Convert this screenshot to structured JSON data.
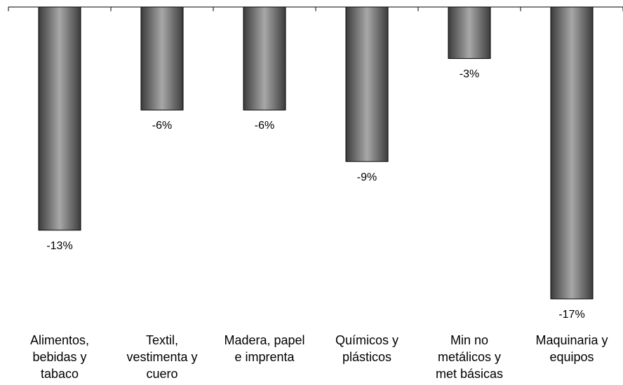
{
  "chart_data": {
    "type": "bar",
    "categories": [
      [
        "Alimentos,",
        "bebidas y",
        "tabaco"
      ],
      [
        "Textil,",
        "vestimenta y",
        "cuero"
      ],
      [
        "Madera, papel",
        "e imprenta"
      ],
      [
        "Químicos y",
        "plásticos"
      ],
      [
        "Min no",
        "metálicos y",
        "met básicas"
      ],
      [
        "Maquinaria y",
        "equipos"
      ]
    ],
    "values": [
      -13,
      -6,
      -6,
      -9,
      -3,
      -17
    ],
    "data_labels": [
      "-13%",
      "-6%",
      "-6%",
      "-9%",
      "-3%",
      "-17%"
    ],
    "title": "",
    "xlabel": "",
    "ylabel": "",
    "ylim": [
      -17,
      0
    ],
    "bar_color": "#6e6e6e",
    "grid": false
  }
}
